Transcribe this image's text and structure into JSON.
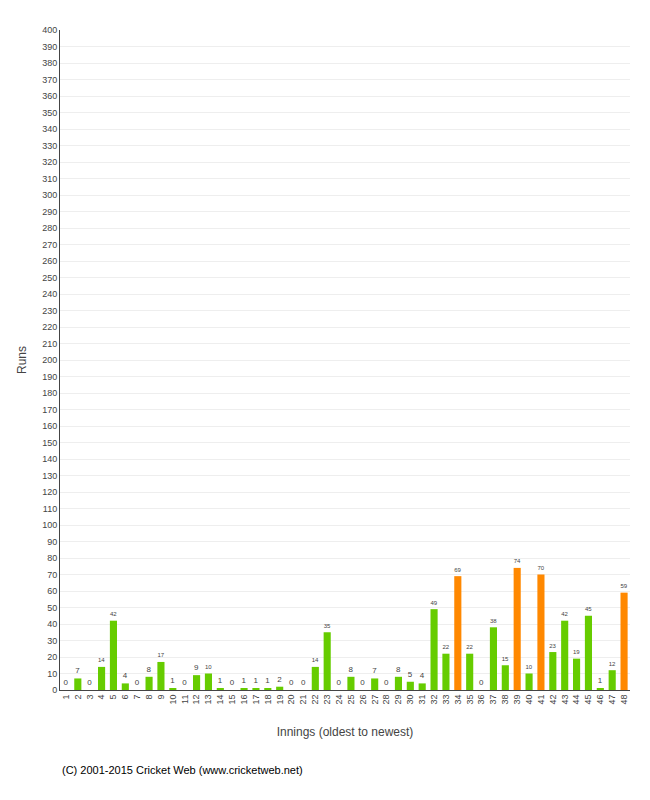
{
  "chart_data": {
    "type": "bar",
    "xlabel": "Innings (oldest to newest)",
    "ylabel": "Runs",
    "annotations": [
      "(C) 2001-2015 Cricket Web (www.cricketweb.net)"
    ],
    "categories": [
      "1",
      "2",
      "3",
      "4",
      "5",
      "6",
      "7",
      "8",
      "9",
      "10",
      "11",
      "12",
      "13",
      "14",
      "15",
      "16",
      "17",
      "18",
      "19",
      "20",
      "21",
      "22",
      "23",
      "24",
      "25",
      "26",
      "27",
      "28",
      "29",
      "30",
      "31",
      "32",
      "33",
      "34",
      "35",
      "36",
      "37",
      "38",
      "39",
      "40",
      "41",
      "42",
      "43",
      "44",
      "45",
      "46",
      "47",
      "48"
    ],
    "values": [
      0,
      7,
      0,
      14,
      42,
      4,
      0,
      8,
      17,
      1,
      0,
      9,
      10,
      1,
      0,
      1,
      1,
      1,
      2,
      0,
      0,
      14,
      35,
      0,
      8,
      0,
      7,
      0,
      8,
      5,
      4,
      49,
      22,
      69,
      22,
      0,
      38,
      15,
      74,
      10,
      70,
      23,
      42,
      19,
      45,
      1,
      12,
      59
    ],
    "colors": [
      "#66cc00",
      "#66cc00",
      "#66cc00",
      "#66cc00",
      "#66cc00",
      "#66cc00",
      "#66cc00",
      "#66cc00",
      "#66cc00",
      "#66cc00",
      "#66cc00",
      "#66cc00",
      "#66cc00",
      "#66cc00",
      "#66cc00",
      "#66cc00",
      "#66cc00",
      "#66cc00",
      "#66cc00",
      "#66cc00",
      "#66cc00",
      "#66cc00",
      "#66cc00",
      "#66cc00",
      "#66cc00",
      "#66cc00",
      "#66cc00",
      "#66cc00",
      "#66cc00",
      "#66cc00",
      "#66cc00",
      "#66cc00",
      "#66cc00",
      "#ff8800",
      "#66cc00",
      "#66cc00",
      "#66cc00",
      "#66cc00",
      "#ff8800",
      "#66cc00",
      "#ff8800",
      "#66cc00",
      "#66cc00",
      "#66cc00",
      "#66cc00",
      "#66cc00",
      "#66cc00",
      "#ff8800"
    ],
    "ylim": [
      0,
      400
    ],
    "yticks": [
      0,
      10,
      20,
      30,
      40,
      50,
      60,
      70,
      80,
      90,
      100,
      110,
      120,
      130,
      140,
      150,
      160,
      170,
      180,
      190,
      200,
      210,
      220,
      230,
      240,
      250,
      260,
      270,
      280,
      290,
      300,
      310,
      320,
      330,
      340,
      350,
      360,
      370,
      380,
      390,
      400
    ],
    "grid": true,
    "data_labels": true
  }
}
